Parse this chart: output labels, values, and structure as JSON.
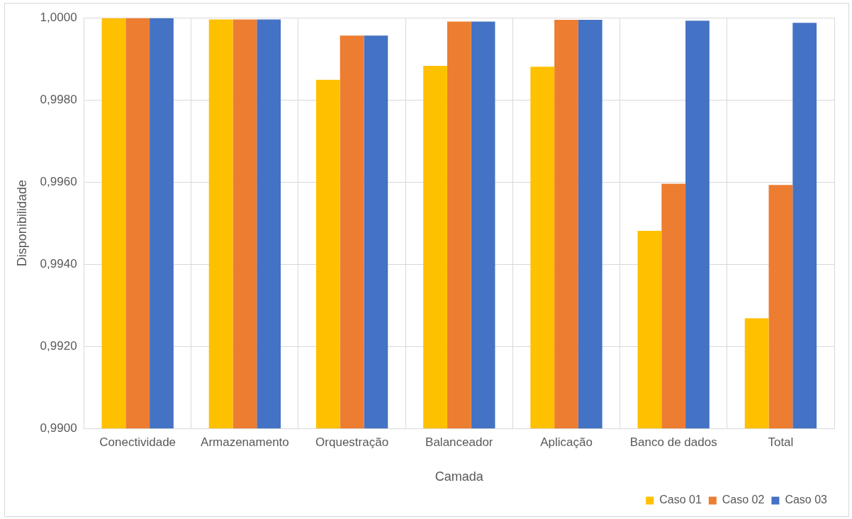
{
  "chart_data": {
    "type": "bar",
    "xlabel": "Camada",
    "ylabel": "Disponibilidade",
    "categories": [
      "Conectividade",
      "Armazenamento",
      "Orquestração",
      "Balanceador",
      "Aplicação",
      "Banco de dados",
      "Total"
    ],
    "series": [
      {
        "name": "Caso 01",
        "color": "#ffc000",
        "values": [
          0.99999,
          0.99996,
          0.99849,
          0.99883,
          0.99881,
          0.99481,
          0.99268
        ]
      },
      {
        "name": "Caso 02",
        "color": "#ed7d31",
        "values": [
          0.99999,
          0.99996,
          0.99957,
          0.99991,
          0.99995,
          0.99596,
          0.99593
        ]
      },
      {
        "name": "Caso 03",
        "color": "#4472c4",
        "values": [
          0.99999,
          0.99996,
          0.99957,
          0.99991,
          0.99995,
          0.99993,
          0.99988
        ]
      }
    ],
    "ylim": [
      0.99,
      1
    ],
    "yticks": [
      {
        "value": 0.99,
        "label": "0,9900"
      },
      {
        "value": 0.992,
        "label": "0,9920"
      },
      {
        "value": 0.994,
        "label": "0,9940"
      },
      {
        "value": 0.996,
        "label": "0,9960"
      },
      {
        "value": 0.998,
        "label": "0,9980"
      },
      {
        "value": 1,
        "label": "1,0000"
      }
    ],
    "grid": true,
    "legend": "bottom right"
  }
}
